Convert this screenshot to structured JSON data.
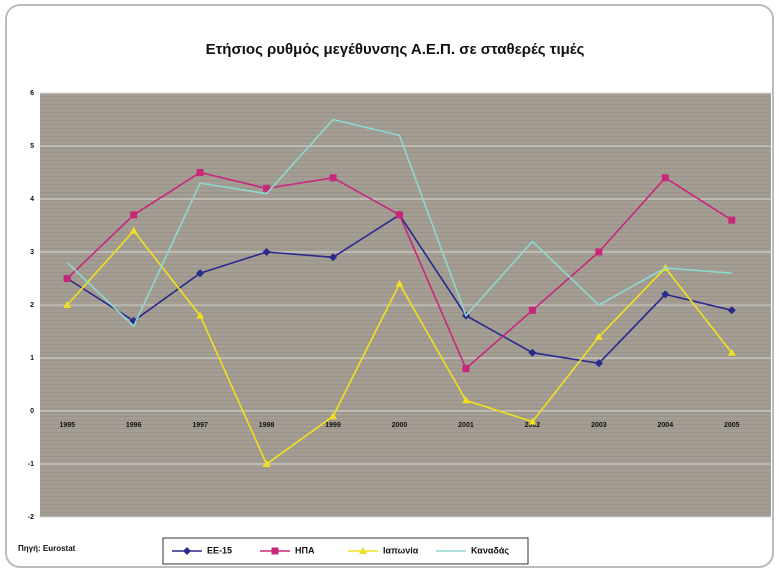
{
  "chart_data": {
    "type": "line",
    "title": "Ετήσιος ρυθμός μεγέθυνσης Α.Ε.Π. σε σταθερές τιμές",
    "source": "Πηγή: Eurostat",
    "categories": [
      "1995",
      "1996",
      "1997",
      "1998",
      "1999",
      "2000",
      "2001",
      "2002",
      "2003",
      "2004",
      "2005"
    ],
    "series": [
      {
        "name": "ΕΕ-15",
        "color": "#2a2a8c",
        "marker": "diamond",
        "values": [
          2.5,
          1.7,
          2.6,
          3.0,
          2.9,
          3.7,
          1.8,
          1.1,
          0.9,
          2.2,
          1.9
        ]
      },
      {
        "name": "ΗΠΑ",
        "color": "#c8287a",
        "marker": "square",
        "values": [
          2.5,
          3.7,
          4.5,
          4.2,
          4.4,
          3.7,
          0.8,
          1.9,
          3.0,
          4.4,
          3.6
        ]
      },
      {
        "name": "Ιαπωνία",
        "color": "#f0e020",
        "marker": "triangle",
        "values": [
          2.0,
          3.4,
          1.8,
          -1.0,
          -0.1,
          2.4,
          0.2,
          -0.2,
          1.4,
          2.7,
          1.1
        ]
      },
      {
        "name": "Καναδάς",
        "color": "#8fd8cf",
        "marker": "none",
        "values": [
          2.8,
          1.6,
          4.3,
          4.1,
          5.5,
          5.2,
          1.8,
          3.2,
          2.0,
          2.7,
          2.6
        ]
      }
    ],
    "ylim": [
      -2,
      6
    ],
    "yticks": [
      -2,
      -1,
      0,
      1,
      2,
      3,
      4,
      5,
      6
    ],
    "grid": true
  }
}
